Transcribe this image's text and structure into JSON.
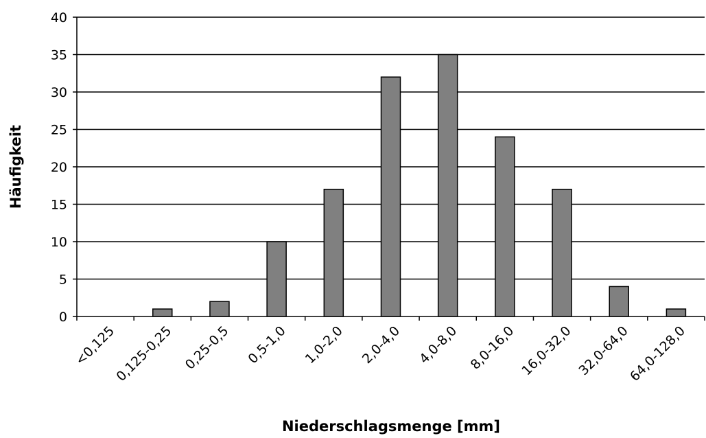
{
  "chart_data": {
    "type": "bar",
    "x_label": "Niederschlagsmenge [mm]",
    "y_label": "Häufigkeit",
    "categories": [
      "<0,125",
      "0,125-0,25",
      "0,25-0,5",
      "0,5-1,0",
      "1,0-2,0",
      "2,0-4,0",
      "4,0-8,0",
      "8,0-16,0",
      "16,0-32,0",
      "32,0-64,0",
      "64,0-128,0"
    ],
    "values": [
      0,
      1,
      2,
      10,
      17,
      32,
      35,
      24,
      17,
      4,
      1
    ],
    "color": "#808080",
    "ylim": [
      0,
      40
    ],
    "yticks": [
      0,
      5,
      10,
      15,
      20,
      25,
      30,
      35,
      40
    ],
    "grid": true
  }
}
